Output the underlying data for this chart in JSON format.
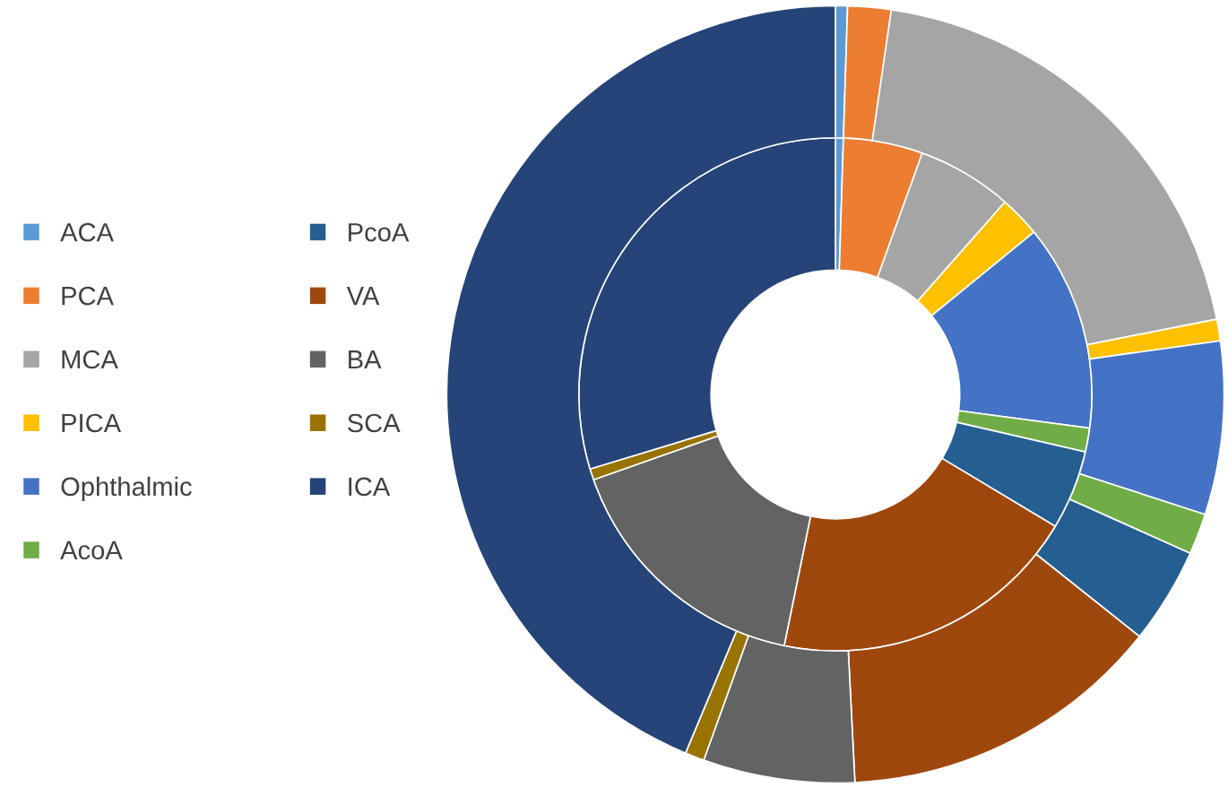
{
  "chart_data": {
    "type": "donut",
    "categories": [
      "ACA",
      "PCA",
      "MCA",
      "PICA",
      "Ophthalmic",
      "AcoA",
      "PcoA",
      "VA",
      "BA",
      "SCA",
      "ICA"
    ],
    "colors": [
      "#5b9bd5",
      "#ed7d31",
      "#a5a5a5",
      "#ffc000",
      "#4472c4",
      "#70ad47",
      "#255e91",
      "#9e480e",
      "#636363",
      "#997300",
      "#264478"
    ],
    "series": [
      {
        "values": [
          0.5,
          5,
          6,
          2.6,
          13,
          1.5,
          5,
          19.6,
          16.4,
          0.7,
          29.7
        ]
      },
      {
        "values": [
          0.5,
          1.8,
          19.6,
          0.9,
          7.2,
          1.7,
          4,
          13.5,
          6.3,
          0.8,
          43.7
        ]
      }
    ],
    "legend": "left"
  }
}
